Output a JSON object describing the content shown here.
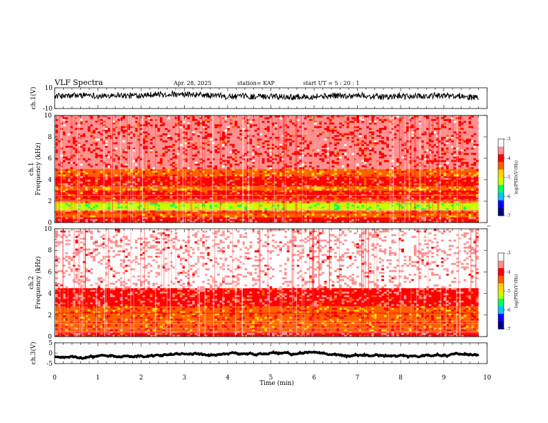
{
  "header": {
    "title": "VLF Spectra",
    "date": "Apr. 28, 2025",
    "station": "station= KAP",
    "start": "start UT = 5 : 20 : 1"
  },
  "colors": {
    "colormap": [
      "#000080",
      "#0000ff",
      "#00c8ff",
      "#00ff60",
      "#c8ff00",
      "#ffd700",
      "#ff6000",
      "#ff0000",
      "#ff9090",
      "#ffffff"
    ],
    "trace": "#000000"
  },
  "chart_data": [
    {
      "type": "line",
      "name": "ch1-waveform",
      "ylabel": "ch.1(V)",
      "ylim": [
        -10,
        10
      ],
      "yticks": [
        "10",
        "-10"
      ],
      "xlim": [
        0,
        10
      ],
      "approx_level": 2,
      "approx_amplitude": 4
    },
    {
      "type": "heatmap",
      "name": "ch1-spectrogram",
      "ylabel_line1": "ch.1",
      "ylabel_line2": "Frequency (kHz)",
      "ylim": [
        0,
        10
      ],
      "yticks": [
        "0",
        "2",
        "4",
        "6",
        "8",
        "10"
      ],
      "xlim": [
        0,
        10
      ],
      "data_end_min": 9.8,
      "bands": [
        {
          "from": 0,
          "to": 0.5,
          "log_psd": -3.9
        },
        {
          "from": 0.5,
          "to": 1.1,
          "log_psd": -4.4
        },
        {
          "from": 1.1,
          "to": 1.9,
          "log_psd": -5.2
        },
        {
          "from": 1.9,
          "to": 2.2,
          "log_psd": -4.5
        },
        {
          "from": 2.2,
          "to": 3.0,
          "log_psd": -4.2
        },
        {
          "from": 3.0,
          "to": 3.4,
          "log_psd": -4.6
        },
        {
          "from": 3.4,
          "to": 4.3,
          "log_psd": -4.1
        },
        {
          "from": 4.3,
          "to": 5.0,
          "log_psd": -4.4
        },
        {
          "from": 5.0,
          "to": 10.0,
          "log_psd": -3.8
        }
      ],
      "colorbar": {
        "label": "log(PSD)(V²/Hz)",
        "ticks": [
          "-3",
          "-4",
          "-5",
          "-6",
          "-7"
        ],
        "range": [
          -7,
          -3
        ]
      }
    },
    {
      "type": "heatmap",
      "name": "ch2-spectrogram",
      "ylabel_line1": "ch.2",
      "ylabel_line2": "Frequency (kHz)",
      "ylim": [
        0,
        10
      ],
      "yticks": [
        "0",
        "2",
        "4",
        "6",
        "8",
        "10"
      ],
      "xlim": [
        0,
        10
      ],
      "data_end_min": 9.8,
      "bands": [
        {
          "from": 0,
          "to": 0.5,
          "log_psd": -4.0
        },
        {
          "from": 0.5,
          "to": 2.8,
          "log_psd": -4.3
        },
        {
          "from": 2.8,
          "to": 4.5,
          "log_psd": -3.9
        },
        {
          "from": 4.5,
          "to": 10.0,
          "log_psd": -3.4
        }
      ],
      "colorbar": {
        "label": "log(PSD)(V²/Hz)",
        "ticks": [
          "-3",
          "-4",
          "-5",
          "-6",
          "-7"
        ],
        "range": [
          -7,
          -3
        ]
      }
    },
    {
      "type": "line",
      "name": "ch3-waveform",
      "ylabel": "ch.3(V)",
      "ylim": [
        -5,
        5
      ],
      "yticks": [
        "5",
        "0",
        "-5"
      ],
      "xlim": [
        0,
        10
      ],
      "approx_level": -1.2,
      "approx_amplitude": 0.3
    },
    {
      "type": "axis",
      "name": "time-axis",
      "xlabel": "Time (min)",
      "xticks": [
        "0",
        "1",
        "2",
        "3",
        "4",
        "5",
        "6",
        "7",
        "8",
        "9",
        "10"
      ]
    }
  ]
}
